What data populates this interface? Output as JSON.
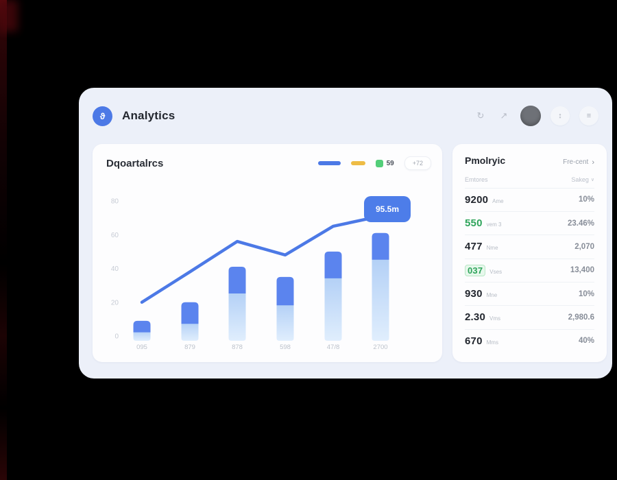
{
  "window": {
    "title": "Analytics",
    "logo_glyph": "ϑ"
  },
  "toolbar": {
    "icon1": "↻",
    "icon2": "↗",
    "icon3": "↕",
    "icon4": "≡"
  },
  "chart_card": {
    "title": "Dqoartalrcs",
    "legend": {
      "chip_label": "59",
      "button_label": "+72"
    },
    "tooltip_label": "95.5m"
  },
  "chart_data": {
    "type": "combo-bar-line",
    "title": "Dqoartalrcs",
    "categories": [
      "095",
      "879",
      "878",
      "598",
      "47/8",
      "2700"
    ],
    "y_tick_labels": [
      "80",
      "60",
      "40",
      "20",
      "0"
    ],
    "ylim": [
      0,
      80
    ],
    "grid": false,
    "legend_position": "top-right",
    "series": [
      {
        "name": "bar-total",
        "type": "bar",
        "values": [
          9,
          20,
          41,
          35,
          50,
          61
        ]
      },
      {
        "name": "bar-solid-segment-start",
        "type": "bar-split",
        "values": [
          3,
          8,
          26,
          19,
          35,
          46
        ]
      },
      {
        "name": "trend-line",
        "type": "line",
        "values": [
          20,
          38,
          56,
          48,
          65,
          71
        ]
      }
    ],
    "tooltip": {
      "text": "95.5m",
      "index": 5
    }
  },
  "panel": {
    "title": "Pmolryic",
    "link": "Fre-cent",
    "chevron": "›",
    "col_left": "Emtores",
    "col_right": "Sakeg",
    "col_sort_glyph": "∨",
    "rows": [
      {
        "value": "9200",
        "label": "Ame",
        "right": "10%",
        "style": "dark"
      },
      {
        "value": "550",
        "label": "vem 3",
        "right": "23.46%",
        "style": "green"
      },
      {
        "value": "477",
        "label": "Nme",
        "right": "2,070",
        "style": "dark"
      },
      {
        "value": "037",
        "label": "Vses",
        "right": "13,400",
        "style": "badge"
      },
      {
        "value": "930",
        "label": "Mne",
        "right": "10%",
        "style": "dark"
      },
      {
        "value": "2.30",
        "label": "Vms",
        "right": "2,980.6",
        "style": "dark"
      },
      {
        "value": "670",
        "label": "Mms",
        "right": "40%",
        "style": "dark"
      }
    ]
  },
  "colors": {
    "accent_blue": "#4c79e6",
    "bar_dark": "#5b84ee",
    "bar_light_top": "#b3d0f6",
    "bar_light_bottom": "#e0eefd",
    "yellow": "#eebc45",
    "green": "#53ce79",
    "tooltip_bg": "#4d7de9",
    "axis_text": "#bcc2cb"
  }
}
